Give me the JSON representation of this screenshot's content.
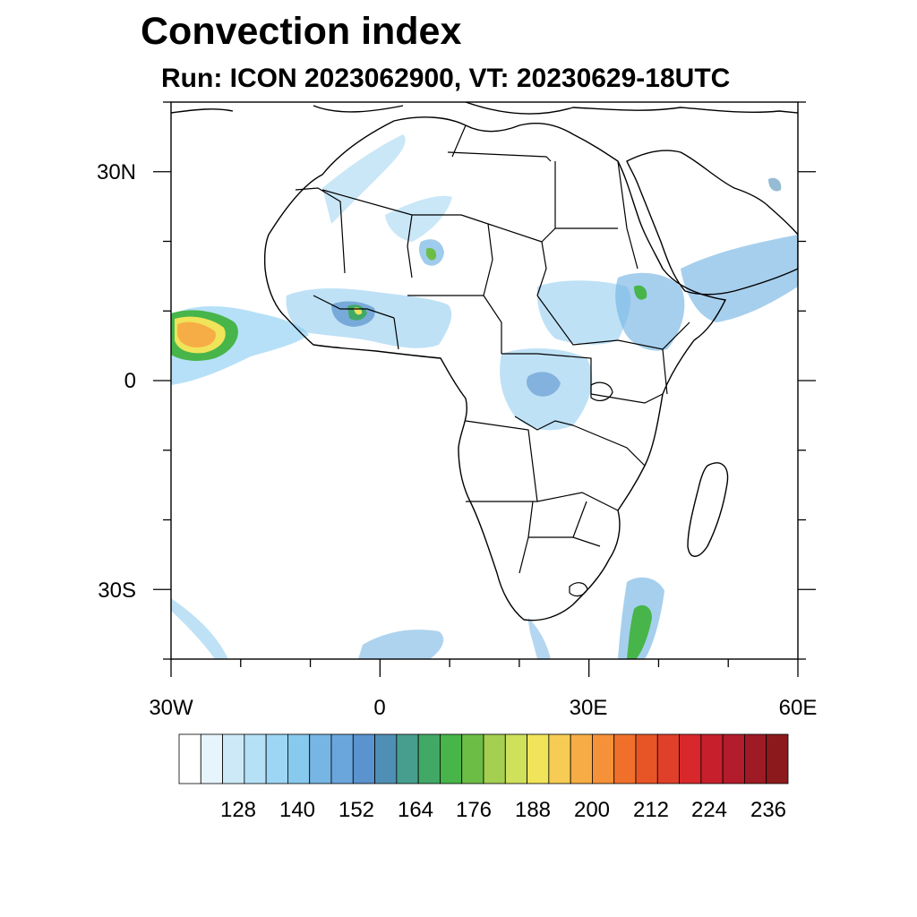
{
  "title": "Convection index",
  "subtitle": "Run: ICON 2023062900,  VT: 20230629-18UTC",
  "map": {
    "lon_range": [
      -30,
      60
    ],
    "lat_range": [
      -40,
      40
    ],
    "lat_ticks": [
      {
        "lat": 30,
        "label": "30N"
      },
      {
        "lat": 0,
        "label": "0"
      },
      {
        "lat": -30,
        "label": "30S"
      }
    ],
    "lon_ticks": [
      {
        "lon": -30,
        "label": "30W"
      },
      {
        "lon": 0,
        "label": "0"
      },
      {
        "lon": 30,
        "label": "30E"
      },
      {
        "lon": 60,
        "label": "60E"
      }
    ]
  },
  "colorbar": {
    "colors": [
      "#ffffff",
      "#e6f4fb",
      "#cde9f8",
      "#b5e0f6",
      "#9dd6f4",
      "#88c9ee",
      "#76b5e4",
      "#6aa6dc",
      "#5a93cd",
      "#4f8fb5",
      "#489e8e",
      "#41a866",
      "#47b54a",
      "#6cbd46",
      "#a5cf50",
      "#cfe05a",
      "#f0e45a",
      "#f7cc55",
      "#f7ad45",
      "#f59138",
      "#f0702b",
      "#e75526",
      "#e0402a",
      "#d8282c",
      "#c81f2c",
      "#b31c2a",
      "#9e1a24",
      "#8c1a1c"
    ],
    "labels": [
      "128",
      "140",
      "152",
      "164",
      "176",
      "188",
      "200",
      "212",
      "224",
      "236"
    ]
  }
}
